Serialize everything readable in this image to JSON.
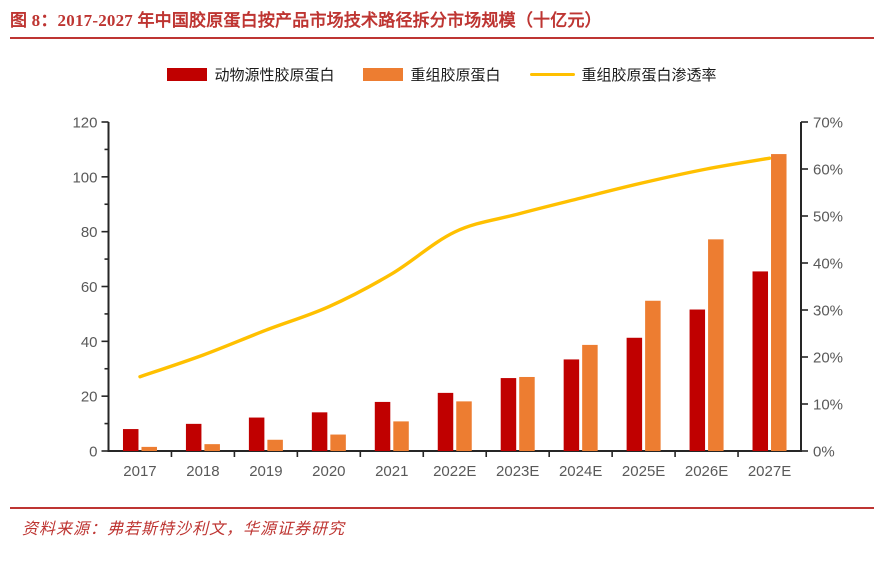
{
  "header": {
    "title": "图 8：2017-2027 年中国胶原蛋白按产品市场技术路径拆分市场规模（十亿元）"
  },
  "footer": {
    "source": "资料来源：弗若斯特沙利文，华源证券研究"
  },
  "colors": {
    "brand_red": "#BE3532",
    "bar_animal": "#C00000",
    "bar_recombinant": "#ED7D31",
    "line_penetration": "#FFC000",
    "axis_label": "#595959",
    "axis_line": "#262626"
  },
  "chart_data": {
    "type": "bar+line",
    "title": "图 8：2017-2027 年中国胶原蛋白按产品市场技术路径拆分市场规模（十亿元）",
    "categories": [
      "2017",
      "2018",
      "2019",
      "2020",
      "2021",
      "2022E",
      "2023E",
      "2024E",
      "2025E",
      "2026E",
      "2027E"
    ],
    "series": [
      {
        "name": "动物源性胶原蛋白",
        "type": "bar",
        "axis": "left",
        "color": "#C00000",
        "values": [
          8.0,
          9.9,
          12.2,
          14.1,
          17.9,
          21.2,
          26.6,
          33.4,
          41.3,
          51.6,
          65.5
        ]
      },
      {
        "name": "重组胶原蛋白",
        "type": "bar",
        "axis": "left",
        "color": "#ED7D31",
        "values": [
          1.5,
          2.5,
          4.1,
          6.0,
          10.8,
          18.1,
          27.0,
          38.7,
          54.8,
          77.2,
          108.3
        ]
      },
      {
        "name": "重组胶原蛋白渗透率",
        "type": "line",
        "axis": "right",
        "color": "#FFC000",
        "values": [
          15.8,
          20.4,
          25.7,
          30.7,
          37.7,
          46.6,
          50.4,
          53.8,
          57.1,
          60.0,
          62.3
        ]
      }
    ],
    "left_axis": {
      "min": 0,
      "max": 120,
      "major_step": 20,
      "minor_step": 10,
      "labels": [
        "0",
        "20",
        "40",
        "60",
        "80",
        "100",
        "120"
      ]
    },
    "right_axis": {
      "min": 0,
      "max": 70,
      "major_step": 10,
      "suffix": "%",
      "labels": [
        "0%",
        "10%",
        "20%",
        "30%",
        "40%",
        "50%",
        "60%",
        "70%"
      ]
    },
    "legend_position": "top",
    "grid": false,
    "unit": "十亿元"
  }
}
